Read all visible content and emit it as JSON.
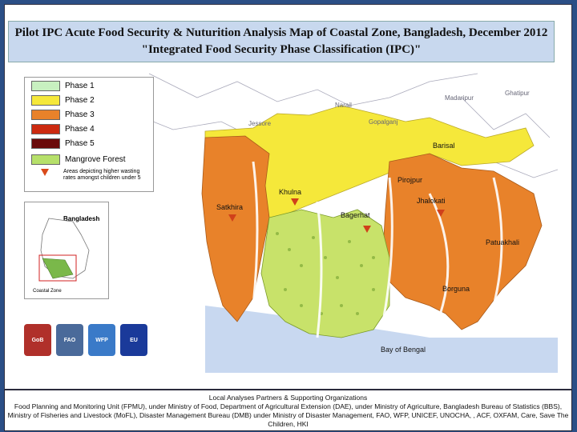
{
  "title": {
    "line1": "Pilot IPC Acute Food Security & Nuturition Analysis Map of Coastal Zone, Bangladesh, December 2012",
    "line2": "\"Integrated Food Security Phase Classification (IPC)\""
  },
  "legend": {
    "items": [
      {
        "label": "Phase 1",
        "color": "#c8f0c0"
      },
      {
        "label": "Phase 2",
        "color": "#f5e83a"
      },
      {
        "label": "Phase 3",
        "color": "#e8822a"
      },
      {
        "label": "Phase 4",
        "color": "#cc2a10"
      },
      {
        "label": "Phase 5",
        "color": "#6a0a0a"
      },
      {
        "label": "Mangrove Forest",
        "color": "#b6e06a"
      }
    ],
    "note": "Areas depicting higher wasting rates amongst children under 5"
  },
  "inset": {
    "label": "Bangladesh",
    "zone": "Coastal Zone"
  },
  "places": {
    "narail": "Narail",
    "madaripur": "Madaripur",
    "ghatipur": "Ghatipur",
    "jessore": "Jessore",
    "gopalganj": "Gopalganj",
    "barisal": "Barisal",
    "satkhira": "Satkhira",
    "khulna": "Khulna",
    "pirojpur": "Pirojpur",
    "jhalokati": "Jhalokati",
    "bagerhat": "Bagerhat",
    "patuakhali": "Patuakhali",
    "borguna": "Borguna",
    "bay": "Bay of Bengal"
  },
  "logos": [
    "GoB",
    "FAO",
    "WFP",
    "EU"
  ],
  "footer": {
    "heading": "Local Analyses Partners & Supporting Organizations",
    "body": "Food Planning and Monitoring Unit (FPMU), under Ministry of Food, Department of Agricultural Extension (DAE), under Ministry of Agriculture, Bangladesh Bureau of Statistics (BBS), Ministry of Fisheries and Livestock (MoFL), Disaster Management Bureau (DMB) under Ministry of Disaster Management, FAO, WFP, UNICEF, UNOCHA, , ACF, OXFAM, Care, Save The Children, HKI"
  }
}
